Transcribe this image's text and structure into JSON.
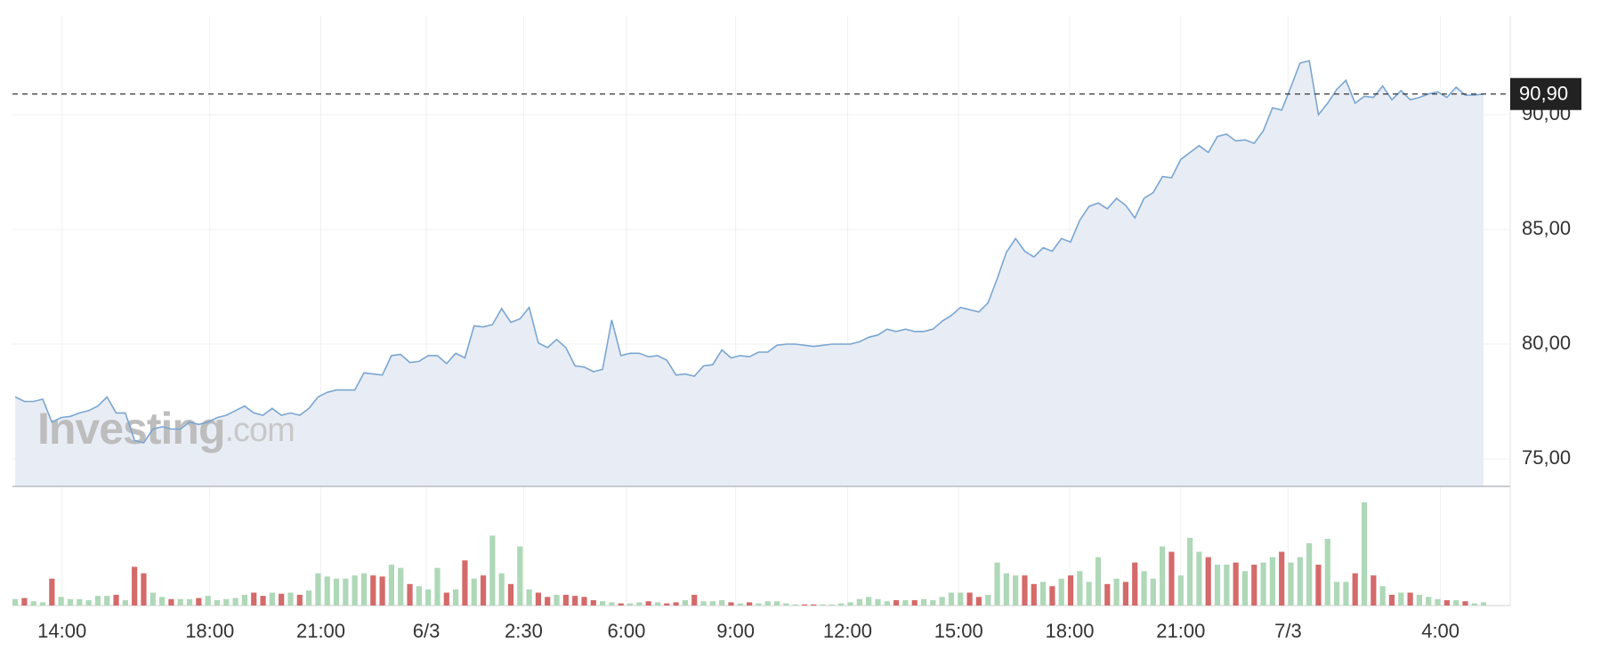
{
  "chart_data": {
    "type": "area",
    "color": "#7aa6d2",
    "fill": "#e8edf5",
    "values": [
      77.7,
      77.5,
      77.5,
      77.6,
      76.6,
      76.8,
      76.85,
      77.0,
      77.1,
      77.3,
      77.7,
      77.0,
      77.0,
      75.8,
      75.7,
      76.3,
      76.4,
      76.3,
      76.3,
      76.6,
      76.5,
      76.6,
      76.8,
      76.9,
      77.1,
      77.3,
      77.0,
      76.9,
      77.2,
      76.9,
      77.0,
      76.9,
      77.2,
      77.7,
      77.9,
      78.0,
      78.0,
      78.0,
      78.75,
      78.7,
      78.65,
      79.5,
      79.55,
      79.2,
      79.25,
      79.5,
      79.5,
      79.15,
      79.6,
      79.4,
      80.8,
      80.75,
      80.85,
      81.55,
      80.95,
      81.1,
      81.6,
      80.05,
      79.85,
      80.2,
      79.85,
      79.05,
      79.0,
      78.8,
      78.9,
      81.05,
      79.5,
      79.6,
      79.6,
      79.45,
      79.5,
      79.3,
      78.65,
      78.7,
      78.6,
      79.05,
      79.1,
      79.75,
      79.4,
      79.5,
      79.45,
      79.65,
      79.65,
      79.95,
      80.0,
      80.0,
      79.95,
      79.9,
      79.95,
      80.0,
      80.0,
      80.0,
      80.1,
      80.3,
      80.4,
      80.65,
      80.55,
      80.65,
      80.55,
      80.55,
      80.65,
      81.0,
      81.25,
      81.6,
      81.5,
      81.4,
      81.8,
      82.85,
      84.0,
      84.6,
      84.05,
      83.8,
      84.2,
      84.05,
      84.6,
      84.45,
      85.4,
      86.0,
      86.15,
      85.9,
      86.35,
      86.05,
      85.5,
      86.35,
      86.6,
      87.3,
      87.25,
      88.05,
      88.35,
      88.65,
      88.35,
      89.05,
      89.15,
      88.85,
      88.9,
      88.75,
      89.3,
      90.3,
      90.2,
      91.2,
      92.25,
      92.35,
      90.0,
      90.5,
      91.1,
      91.5,
      90.5,
      90.8,
      90.75,
      91.25,
      90.65,
      91.05,
      90.65,
      90.75,
      90.9,
      91.0,
      90.75,
      91.2,
      90.85,
      90.85,
      90.9
    ],
    "xlim": [
      -0.3,
      162.9
    ],
    "xticks": [
      {
        "value": 5.1,
        "label": "14:00"
      },
      {
        "value": 21.2,
        "label": "18:00"
      },
      {
        "value": 33.3,
        "label": "21:00"
      },
      {
        "value": 44.8,
        "label": "6/3"
      },
      {
        "value": 55.4,
        "label": "2:30"
      },
      {
        "value": 66.6,
        "label": "6:00"
      },
      {
        "value": 78.5,
        "label": "9:00"
      },
      {
        "value": 90.7,
        "label": "12:00"
      },
      {
        "value": 102.8,
        "label": "15:00"
      },
      {
        "value": 114.9,
        "label": "18:00"
      },
      {
        "value": 127.0,
        "label": "21:00"
      },
      {
        "value": 138.7,
        "label": "7/3"
      },
      {
        "value": 155.3,
        "label": "4:00"
      }
    ],
    "ylim": [
      73.8,
      94.3
    ],
    "yticks": [
      {
        "value": 75,
        "label": "75,00"
      },
      {
        "value": 80,
        "label": "80,00"
      },
      {
        "value": 85,
        "label": "85,00"
      },
      {
        "value": 90,
        "label": "90,00"
      }
    ],
    "grid": true,
    "last": {
      "value": 90.9,
      "label": "90,90"
    },
    "watermark": [
      "Investing",
      ".com"
    ],
    "volume": {
      "up_color": "#aed8b7",
      "down_color": "#d46a6a",
      "ylim": [
        0,
        110
      ],
      "values": [
        6,
        7,
        4,
        3,
        25,
        8,
        6,
        6,
        5,
        9,
        9,
        10,
        5,
        36,
        30,
        12,
        8,
        6,
        6,
        6,
        7,
        9,
        5,
        6,
        7,
        10,
        12,
        9,
        12,
        11,
        12,
        10,
        14,
        30,
        27,
        25,
        25,
        28,
        30,
        28,
        27,
        38,
        35,
        20,
        18,
        15,
        35,
        12,
        15,
        42,
        25,
        28,
        65,
        30,
        20,
        55,
        15,
        12,
        8,
        10,
        10,
        9,
        8,
        5,
        4,
        3,
        2,
        2,
        3,
        4,
        3,
        2,
        3,
        5,
        10,
        4,
        4,
        5,
        3,
        2,
        3,
        2,
        4,
        4,
        2,
        1,
        1,
        1,
        1,
        1,
        2,
        3,
        6,
        8,
        6,
        4,
        5,
        5,
        5,
        6,
        5,
        8,
        12,
        12,
        12,
        8,
        10,
        40,
        30,
        28,
        28,
        20,
        22,
        18,
        25,
        28,
        32,
        22,
        45,
        20,
        25,
        22,
        40,
        32,
        25,
        55,
        50,
        28,
        63,
        50,
        45,
        38,
        38,
        40,
        32,
        38,
        40,
        45,
        50,
        40,
        45,
        58,
        38,
        62,
        22,
        22,
        30,
        96,
        28,
        18,
        10,
        12,
        12,
        10,
        8,
        6,
        5,
        5,
        4,
        2,
        3
      ]
    }
  }
}
